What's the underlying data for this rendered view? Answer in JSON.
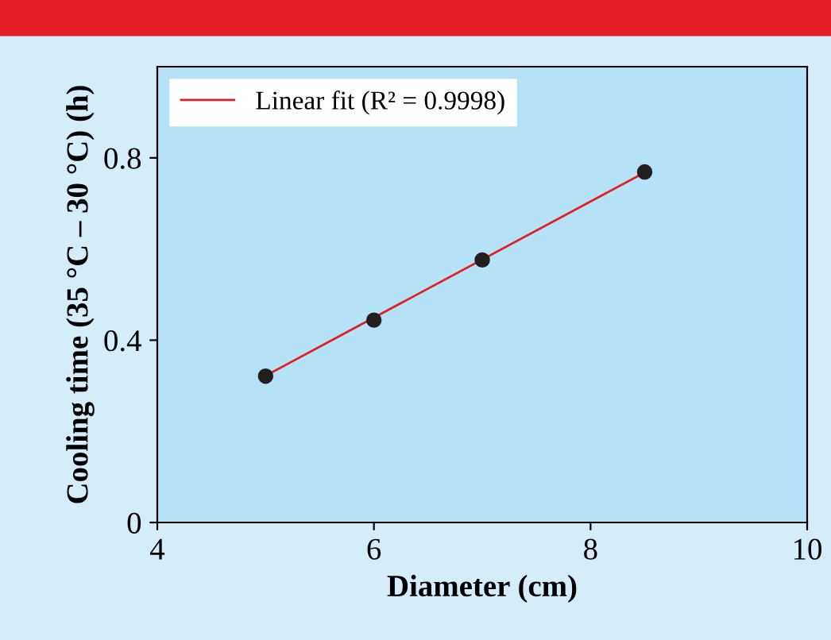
{
  "chart_data": {
    "type": "scatter",
    "xlabel": "Diameter (cm)",
    "ylabel": "Cooling time (35 °C – 30 °C) (h)",
    "series": [
      {
        "color": "#231f20",
        "marker": "circle",
        "x": [
          5,
          6,
          7,
          8.5
        ],
        "values": [
          0.321,
          0.444,
          0.576,
          0.769
        ]
      },
      {
        "type": "line",
        "name": "Linear fit (R² = 0.9998)",
        "color": "#e31e24",
        "x": [
          5,
          8.5
        ],
        "values": [
          0.322,
          0.768
        ]
      }
    ],
    "xlim": [
      4,
      10
    ],
    "xticks": [
      4,
      6,
      8,
      10
    ],
    "ylim": [
      0,
      1.0
    ],
    "yticks": [
      0,
      0.4,
      0.8
    ],
    "legend": "top left",
    "grid": false
  }
}
